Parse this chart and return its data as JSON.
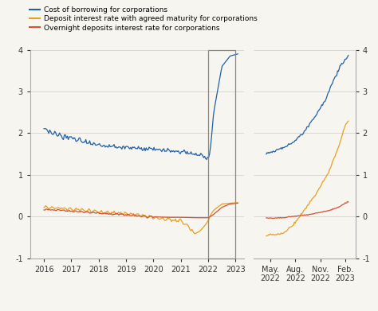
{
  "legend": [
    "Cost of borrowing for corporations",
    "Deposit interest rate with agreed maturity for corporations",
    "Overnight deposits interest rate for corporations"
  ],
  "colors": [
    "#2060a8",
    "#e8a020",
    "#d94f30"
  ],
  "ylim": [
    -1,
    4
  ],
  "yticks": [
    -1,
    0,
    1,
    2,
    3,
    4
  ],
  "background_color": "#f7f5f0",
  "grid_color": "#cccccc",
  "left_xtick_labels": [
    "2016",
    "2017",
    "2018",
    "2019",
    "2020",
    "2021",
    "2022",
    "2023"
  ],
  "left_xtick_positions": [
    2016,
    2017,
    2018,
    2019,
    2020,
    2021,
    2022,
    2023
  ],
  "right_xtick_labels": [
    "May.\n2022",
    "Aug.\n2022",
    "Nov.\n2022",
    "Feb.\n2023"
  ],
  "right_xtick_positions": [
    2022.37,
    2022.62,
    2022.87,
    2023.12
  ]
}
